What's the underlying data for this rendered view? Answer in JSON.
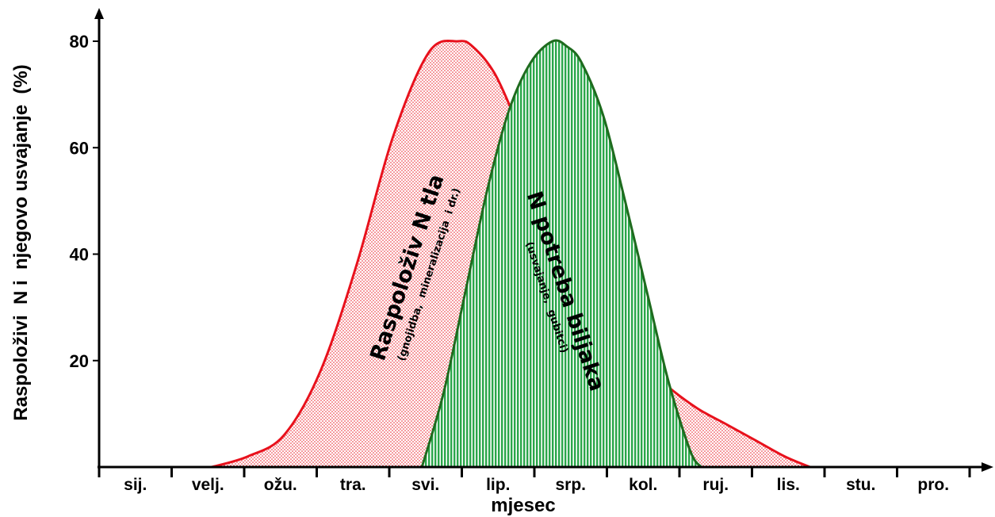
{
  "chart_data": {
    "type": "area",
    "xlabel": "mjesec",
    "ylabel": "Raspoloživi  N i  njegovo usvajanje  (%)",
    "ylim": [
      0,
      80
    ],
    "yticks": [
      20,
      40,
      60,
      80
    ],
    "categories": [
      "sij.",
      "velj.",
      "ožu.",
      "tra.",
      "svi.",
      "lip.",
      "srp.",
      "kol.",
      "ruj.",
      "lis.",
      "stu.",
      "pro."
    ],
    "grid": false,
    "legend": "none",
    "series": [
      {
        "name": "Raspoloživ N tla",
        "subtitle": "(gnojidba,  mineralizacija  i dr.)",
        "color": "#e8111c",
        "fill_pattern": "dotted",
        "x": [
          1.55,
          2.05,
          2.55,
          3.05,
          3.55,
          4.05,
          4.55,
          4.95,
          5.15,
          5.45,
          5.75,
          6.05,
          6.35,
          6.65,
          7.05,
          7.45,
          7.85,
          8.25,
          8.65,
          9.05,
          9.45,
          9.8
        ],
        "values": [
          0,
          2,
          6,
          18,
          38,
          62,
          78,
          80,
          79,
          74,
          65,
          55,
          45,
          36,
          27,
          20,
          15,
          11,
          8,
          5,
          2,
          0
        ]
      },
      {
        "name": "N potreba biljaka",
        "subtitle": "(usvajanje,  gubitci)",
        "color": "#1e6b1e",
        "fill_pattern": "vertical-stripes",
        "x": [
          4.45,
          4.75,
          5.05,
          5.35,
          5.65,
          5.95,
          6.25,
          6.45,
          6.65,
          6.95,
          7.25,
          7.55,
          7.85,
          8.15,
          8.3
        ],
        "values": [
          0,
          14,
          33,
          52,
          67,
          76,
          80,
          79,
          76,
          66,
          50,
          33,
          16,
          3,
          0
        ]
      }
    ]
  }
}
